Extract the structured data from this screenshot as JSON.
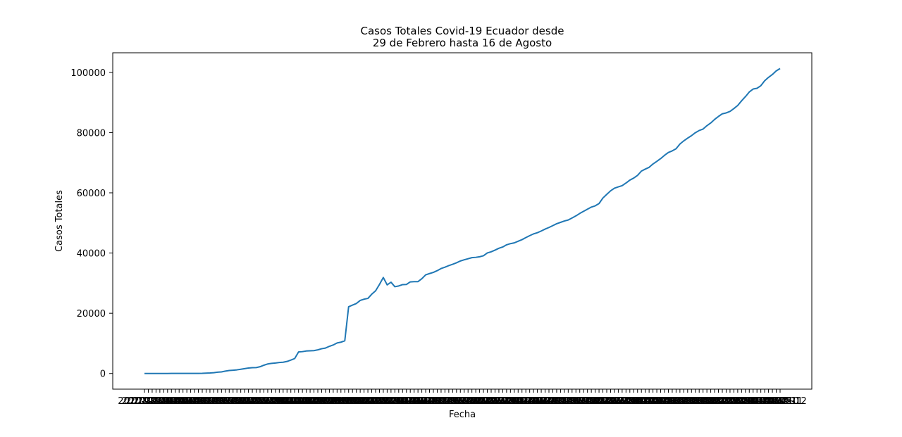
{
  "chart_data": {
    "type": "line",
    "title_lines": [
      "Casos Totales Covid-19 Ecuador desde",
      "29 de Febrero hasta 16 de Agosto"
    ],
    "xlabel": "Fecha",
    "ylabel": "Casos Totales",
    "x_start": "2020-02-29",
    "x_end": "2020-08-16",
    "x_tick_labels_note": "overlapping, illegible date labels",
    "ylim": [
      -5200,
      106500
    ],
    "y_ticks": [
      0,
      20000,
      40000,
      60000,
      80000,
      100000
    ],
    "y_tick_labels": [
      "0",
      "20000",
      "40000",
      "60000",
      "80000",
      "100000"
    ],
    "grid": false,
    "series": [
      {
        "color": "#1f77b4",
        "values": [
          1,
          1,
          6,
          7,
          10,
          13,
          14,
          15,
          15,
          17,
          17,
          19,
          23,
          28,
          37,
          58,
          111,
          168,
          260,
          426,
          532,
          789,
          981,
          1082,
          1211,
          1403,
          1595,
          1823,
          1924,
          1962,
          2240,
          2748,
          3163,
          3368,
          3465,
          3646,
          3747,
          3995,
          4450,
          4965,
          7161,
          7257,
          7466,
          7529,
          7603,
          7858,
          8225,
          8450,
          9022,
          9468,
          10128,
          10398,
          10850,
          22160,
          22719,
          23240,
          24258,
          24675,
          24934,
          26336,
          27464,
          29559,
          31881,
          29420,
          30298,
          28818,
          29071,
          29509,
          29559,
          30419,
          30502,
          30502,
          31467,
          32763,
          33182,
          33582,
          34151,
          34854,
          35306,
          35828,
          36258,
          36756,
          37355,
          37743,
          38103,
          38471,
          38571,
          38763,
          39098,
          40036,
          40414,
          40966,
          41575,
          42013,
          42728,
          43120,
          43378,
          43917,
          44440,
          45118,
          45778,
          46356,
          46751,
          47322,
          47943,
          48490,
          49097,
          49731,
          50183,
          50640,
          50965,
          51643,
          52334,
          53156,
          53856,
          54574,
          55255,
          55665,
          56432,
          58257,
          59468,
          60657,
          61535,
          61958,
          62380,
          63245,
          64221,
          64890,
          65801,
          67209,
          67870,
          68459,
          69570,
          70439,
          71365,
          72444,
          73382,
          73920,
          74620,
          76217,
          77257,
          78148,
          78981,
          79954,
          80694,
          81161,
          82279,
          83193,
          84370,
          85355,
          86232,
          86524,
          87041,
          87963,
          89002,
          90537,
          91927,
          93476,
          94459,
          94701,
          95563,
          97208,
          98343,
          99292,
          100476,
          101263
        ]
      }
    ]
  }
}
